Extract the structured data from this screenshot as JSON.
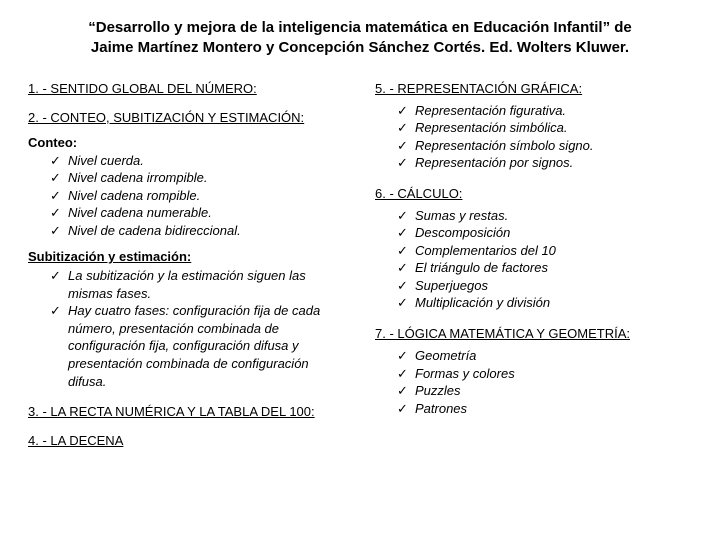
{
  "title_line1": "“Desarrollo y mejora de la inteligencia matemática en Educación Infantil” de",
  "title_line2": "Jaime Martínez Montero y Concepción Sánchez Cortés. Ed. Wolters Kluwer.",
  "left": {
    "s1": "1. - SENTIDO GLOBAL DEL NÚMERO:",
    "s2": "2. - CONTEO, SUBITIZACIÓN Y ESTIMACIÓN:",
    "conteo_head": "Conteo:",
    "conteo": [
      "Nivel cuerda.",
      "Nivel cadena irrompible.",
      "Nivel cadena rompible.",
      "Nivel cadena numerable.",
      "Nivel de cadena bidireccional."
    ],
    "sub_head": "Subitización y estimación:",
    "sub": [
      "La subitización y la estimación siguen las mismas fases.",
      "Hay cuatro fases: configuración fija de cada número, presentación combinada de configuración fija, configuración difusa y presentación combinada de configuración difusa."
    ],
    "s3": "3. - LA RECTA NUMÉRICA Y LA TABLA DEL 100:",
    "s4": "4. - LA DECENA"
  },
  "right": {
    "s5": "5. - REPRESENTACIÓN GRÁFICA:",
    "rep": [
      "Representación figurativa.",
      "Representación simbólica.",
      "Representación símbolo signo.",
      "Representación por signos."
    ],
    "s6": "6. - CÁLCULO:",
    "calc": [
      "Sumas y restas.",
      "Descomposición",
      "Complementarios del 10",
      "El triángulo de factores",
      "Superjuegos",
      "Multiplicación y división"
    ],
    "s7": "7. - LÓGICA MATEMÁTICA Y GEOMETRÍA:",
    "geo": [
      "Geometría",
      "Formas y colores",
      "Puzzles",
      "Patrones"
    ]
  }
}
